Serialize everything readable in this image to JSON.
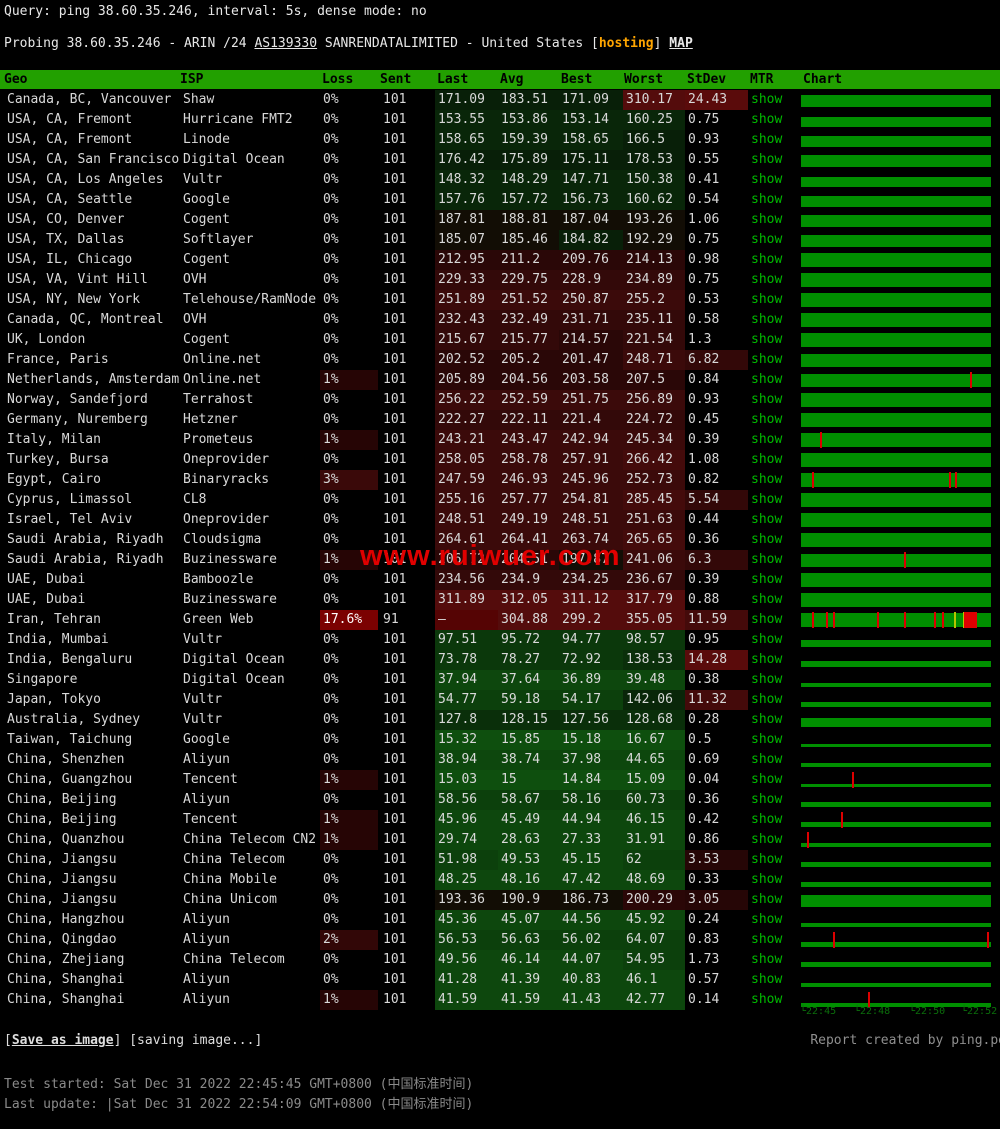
{
  "colors": {
    "header_bg": "#22a000",
    "link_green": "#00ba00",
    "bar_green": "#008f00",
    "tick_red": "#dd0000",
    "tick_yellow": "#b6c400",
    "hosting_orange": "#ffa500",
    "watermark_red": "#e00000",
    "loss_heavy_bg": "#7b0101"
  },
  "top": {
    "query": "Query: ping 38.60.35.246, interval: 5s, dense mode: no",
    "probing_part1": "Probing 38.60.35.246 - ARIN /24 ",
    "probing_asn": "AS139330",
    "probing_part2": " SANRENDATALIMITED - United States [",
    "probing_hosting": "hosting",
    "probing_part3": "] ",
    "probing_map": "MAP"
  },
  "watermark": "www.ruiwuer.com",
  "table": {
    "headers": [
      "Geo",
      "ISP",
      "Loss",
      "Sent",
      "Last",
      "Avg",
      "Best",
      "Worst",
      "StDev",
      "MTR",
      "Chart"
    ],
    "mtr_label": "show",
    "rows": [
      {
        "geo": "Canada, BC, Vancouver",
        "isp": "Shaw",
        "loss": "0%",
        "sent": "101",
        "last": "171.09",
        "avg": "183.51",
        "best": "171.09",
        "worst": "310.17",
        "stdev": "24.43",
        "chart": {
          "ticks": []
        }
      },
      {
        "geo": "USA, CA, Fremont",
        "isp": "Hurricane FMT2",
        "loss": "0%",
        "sent": "101",
        "last": "153.55",
        "avg": "153.86",
        "best": "153.14",
        "worst": "160.25",
        "stdev": "0.75",
        "chart": {
          "ticks": []
        }
      },
      {
        "geo": "USA, CA, Fremont",
        "isp": "Linode",
        "loss": "0%",
        "sent": "101",
        "last": "158.65",
        "avg": "159.39",
        "best": "158.65",
        "worst": "166.5",
        "stdev": "0.93",
        "chart": {
          "ticks": []
        }
      },
      {
        "geo": "USA, CA, San Francisco",
        "isp": "Digital Ocean",
        "loss": "0%",
        "sent": "101",
        "last": "176.42",
        "avg": "175.89",
        "best": "175.11",
        "worst": "178.53",
        "stdev": "0.55",
        "chart": {
          "ticks": []
        }
      },
      {
        "geo": "USA, CA, Los Angeles",
        "isp": "Vultr",
        "loss": "0%",
        "sent": "101",
        "last": "148.32",
        "avg": "148.29",
        "best": "147.71",
        "worst": "150.38",
        "stdev": "0.41",
        "chart": {
          "ticks": []
        }
      },
      {
        "geo": "USA, CA, Seattle",
        "isp": "Google",
        "loss": "0%",
        "sent": "101",
        "last": "157.76",
        "avg": "157.72",
        "best": "156.73",
        "worst": "160.62",
        "stdev": "0.54",
        "chart": {
          "ticks": []
        }
      },
      {
        "geo": "USA, CO, Denver",
        "isp": "Cogent",
        "loss": "0%",
        "sent": "101",
        "last": "187.81",
        "avg": "188.81",
        "best": "187.04",
        "worst": "193.26",
        "stdev": "1.06",
        "chart": {
          "ticks": []
        }
      },
      {
        "geo": "USA, TX, Dallas",
        "isp": "Softlayer",
        "loss": "0%",
        "sent": "101",
        "last": "185.07",
        "avg": "185.46",
        "best": "184.82",
        "worst": "192.29",
        "stdev": "0.75",
        "chart": {
          "ticks": []
        }
      },
      {
        "geo": "USA, IL, Chicago",
        "isp": "Cogent",
        "loss": "0%",
        "sent": "101",
        "last": "212.95",
        "avg": "211.2",
        "best": "209.76",
        "worst": "214.13",
        "stdev": "0.98",
        "chart": {
          "ticks": []
        }
      },
      {
        "geo": "USA, VA, Vint Hill",
        "isp": "OVH",
        "loss": "0%",
        "sent": "101",
        "last": "229.33",
        "avg": "229.75",
        "best": "228.9",
        "worst": "234.89",
        "stdev": "0.75",
        "chart": {
          "ticks": []
        }
      },
      {
        "geo": "USA, NY, New York",
        "isp": "Telehouse/RamNode",
        "loss": "0%",
        "sent": "101",
        "last": "251.89",
        "avg": "251.52",
        "best": "250.87",
        "worst": "255.2",
        "stdev": "0.53",
        "chart": {
          "ticks": []
        }
      },
      {
        "geo": "Canada, QC, Montreal",
        "isp": "OVH",
        "loss": "0%",
        "sent": "101",
        "last": "232.43",
        "avg": "232.49",
        "best": "231.71",
        "worst": "235.11",
        "stdev": "0.58",
        "chart": {
          "ticks": []
        }
      },
      {
        "geo": "UK, London",
        "isp": "Cogent",
        "loss": "0%",
        "sent": "101",
        "last": "215.67",
        "avg": "215.77",
        "best": "214.57",
        "worst": "221.54",
        "stdev": "1.3",
        "chart": {
          "ticks": []
        }
      },
      {
        "geo": "France, Paris",
        "isp": "Online.net",
        "loss": "0%",
        "sent": "101",
        "last": "202.52",
        "avg": "205.2",
        "best": "201.47",
        "worst": "248.71",
        "stdev": "6.82",
        "chart": {
          "ticks": []
        }
      },
      {
        "geo": "Netherlands, Amsterdam",
        "isp": "Online.net",
        "loss": "1%",
        "sent": "101",
        "last": "205.89",
        "avg": "204.56",
        "best": "203.58",
        "worst": "207.5",
        "stdev": "0.84",
        "chart": {
          "ticks": [
            0.89
          ]
        }
      },
      {
        "geo": "Norway, Sandefjord",
        "isp": "Terrahost",
        "loss": "0%",
        "sent": "101",
        "last": "256.22",
        "avg": "252.59",
        "best": "251.75",
        "worst": "256.89",
        "stdev": "0.93",
        "chart": {
          "ticks": []
        }
      },
      {
        "geo": "Germany, Nuremberg",
        "isp": "Hetzner",
        "loss": "0%",
        "sent": "101",
        "last": "222.27",
        "avg": "222.11",
        "best": "221.4",
        "worst": "224.72",
        "stdev": "0.45",
        "chart": {
          "ticks": []
        }
      },
      {
        "geo": "Italy, Milan",
        "isp": "Prometeus",
        "loss": "1%",
        "sent": "101",
        "last": "243.21",
        "avg": "243.47",
        "best": "242.94",
        "worst": "245.34",
        "stdev": "0.39",
        "chart": {
          "ticks": [
            0.1
          ]
        }
      },
      {
        "geo": "Turkey, Bursa",
        "isp": "Oneprovider",
        "loss": "0%",
        "sent": "101",
        "last": "258.05",
        "avg": "258.78",
        "best": "257.91",
        "worst": "266.42",
        "stdev": "1.08",
        "chart": {
          "ticks": []
        }
      },
      {
        "geo": "Egypt, Cairo",
        "isp": "Binaryracks",
        "loss": "3%",
        "sent": "101",
        "last": "247.59",
        "avg": "246.93",
        "best": "245.96",
        "worst": "252.73",
        "stdev": "0.82",
        "chart": {
          "ticks": [
            0.06,
            0.78,
            0.81
          ]
        }
      },
      {
        "geo": "Cyprus, Limassol",
        "isp": "CL8",
        "loss": "0%",
        "sent": "101",
        "last": "255.16",
        "avg": "257.77",
        "best": "254.81",
        "worst": "285.45",
        "stdev": "5.54",
        "chart": {
          "ticks": []
        }
      },
      {
        "geo": "Israel, Tel Aviv",
        "isp": "Oneprovider",
        "loss": "0%",
        "sent": "101",
        "last": "248.51",
        "avg": "249.19",
        "best": "248.51",
        "worst": "251.63",
        "stdev": "0.44",
        "chart": {
          "ticks": []
        }
      },
      {
        "geo": "Saudi Arabia, Riyadh",
        "isp": "Cloudsigma",
        "loss": "0%",
        "sent": "101",
        "last": "264.61",
        "avg": "264.41",
        "best": "263.74",
        "worst": "265.65",
        "stdev": "0.36",
        "chart": {
          "ticks": []
        }
      },
      {
        "geo": "Saudi Arabia, Riyadh",
        "isp": "Buzinessware",
        "loss": "1%",
        "sent": "101",
        "last": "206.72",
        "avg": "204.51",
        "best": "197.87",
        "worst": "241.06",
        "stdev": "6.3",
        "chart": {
          "ticks": [
            0.54
          ]
        }
      },
      {
        "geo": "UAE, Dubai",
        "isp": "Bamboozle",
        "loss": "0%",
        "sent": "101",
        "last": "234.56",
        "avg": "234.9",
        "best": "234.25",
        "worst": "236.67",
        "stdev": "0.39",
        "chart": {
          "ticks": []
        }
      },
      {
        "geo": "UAE, Dubai",
        "isp": "Buzinessware",
        "loss": "0%",
        "sent": "101",
        "last": "311.89",
        "avg": "312.05",
        "best": "311.12",
        "worst": "317.79",
        "stdev": "0.88",
        "chart": {
          "ticks": []
        }
      },
      {
        "geo": "Iran, Tehran",
        "isp": "Green Web",
        "loss": "17.6%",
        "sent": "91",
        "last": "–",
        "avg": "304.88",
        "best": "299.2",
        "worst": "355.05",
        "stdev": "11.59",
        "chart": {
          "ticks": [
            0.06,
            0.13,
            0.17,
            0.4,
            0.54,
            0.7,
            0.74
          ],
          "yellow": [
            0.805,
            0.85
          ],
          "block": [
            0.86,
            0.93
          ]
        }
      },
      {
        "geo": "India, Mumbai",
        "isp": "Vultr",
        "loss": "0%",
        "sent": "101",
        "last": "97.51",
        "avg": "95.72",
        "best": "94.77",
        "worst": "98.57",
        "stdev": "0.95",
        "chart": {
          "ticks": []
        }
      },
      {
        "geo": "India, Bengaluru",
        "isp": "Digital Ocean",
        "loss": "0%",
        "sent": "101",
        "last": "73.78",
        "avg": "78.27",
        "best": "72.92",
        "worst": "138.53",
        "stdev": "14.28",
        "chart": {
          "ticks": []
        }
      },
      {
        "geo": "Singapore",
        "isp": "Digital Ocean",
        "loss": "0%",
        "sent": "101",
        "last": "37.94",
        "avg": "37.64",
        "best": "36.89",
        "worst": "39.48",
        "stdev": "0.38",
        "chart": {
          "ticks": []
        }
      },
      {
        "geo": "Japan, Tokyo",
        "isp": "Vultr",
        "loss": "0%",
        "sent": "101",
        "last": "54.77",
        "avg": "59.18",
        "best": "54.17",
        "worst": "142.06",
        "stdev": "11.32",
        "chart": {
          "ticks": []
        }
      },
      {
        "geo": "Australia, Sydney",
        "isp": "Vultr",
        "loss": "0%",
        "sent": "101",
        "last": "127.8",
        "avg": "128.15",
        "best": "127.56",
        "worst": "128.68",
        "stdev": "0.28",
        "chart": {
          "ticks": []
        }
      },
      {
        "geo": "Taiwan, Taichung",
        "isp": "Google",
        "loss": "0%",
        "sent": "101",
        "last": "15.32",
        "avg": "15.85",
        "best": "15.18",
        "worst": "16.67",
        "stdev": "0.5",
        "chart": {
          "ticks": []
        }
      },
      {
        "geo": "China, Shenzhen",
        "isp": "Aliyun",
        "loss": "0%",
        "sent": "101",
        "last": "38.94",
        "avg": "38.74",
        "best": "37.98",
        "worst": "44.65",
        "stdev": "0.69",
        "chart": {
          "ticks": []
        }
      },
      {
        "geo": "China, Guangzhou",
        "isp": "Tencent",
        "loss": "1%",
        "sent": "101",
        "last": "15.03",
        "avg": "15",
        "best": "14.84",
        "worst": "15.09",
        "stdev": "0.04",
        "chart": {
          "ticks": [
            0.27
          ]
        }
      },
      {
        "geo": "China, Beijing",
        "isp": "Aliyun",
        "loss": "0%",
        "sent": "101",
        "last": "58.56",
        "avg": "58.67",
        "best": "58.16",
        "worst": "60.73",
        "stdev": "0.36",
        "chart": {
          "ticks": []
        }
      },
      {
        "geo": "China, Beijing",
        "isp": "Tencent",
        "loss": "1%",
        "sent": "101",
        "last": "45.96",
        "avg": "45.49",
        "best": "44.94",
        "worst": "46.15",
        "stdev": "0.42",
        "chart": {
          "ticks": [
            0.21
          ]
        }
      },
      {
        "geo": "China, Quanzhou",
        "isp": "China Telecom CN2",
        "loss": "1%",
        "sent": "101",
        "last": "29.74",
        "avg": "28.63",
        "best": "27.33",
        "worst": "31.91",
        "stdev": "0.86",
        "chart": {
          "ticks": [
            0.03
          ]
        }
      },
      {
        "geo": "China, Jiangsu",
        "isp": "China Telecom",
        "loss": "0%",
        "sent": "101",
        "last": "51.98",
        "avg": "49.53",
        "best": "45.15",
        "worst": "62",
        "stdev": "3.53",
        "chart": {
          "ticks": []
        }
      },
      {
        "geo": "China, Jiangsu",
        "isp": "China Mobile",
        "loss": "0%",
        "sent": "101",
        "last": "48.25",
        "avg": "48.16",
        "best": "47.42",
        "worst": "48.69",
        "stdev": "0.33",
        "chart": {
          "ticks": []
        }
      },
      {
        "geo": "China, Jiangsu",
        "isp": "China Unicom",
        "loss": "0%",
        "sent": "101",
        "last": "193.36",
        "avg": "190.9",
        "best": "186.73",
        "worst": "200.29",
        "stdev": "3.05",
        "chart": {
          "ticks": []
        }
      },
      {
        "geo": "China, Hangzhou",
        "isp": "Aliyun",
        "loss": "0%",
        "sent": "101",
        "last": "45.36",
        "avg": "45.07",
        "best": "44.56",
        "worst": "45.92",
        "stdev": "0.24",
        "chart": {
          "ticks": []
        }
      },
      {
        "geo": "China, Qingdao",
        "isp": "Aliyun",
        "loss": "2%",
        "sent": "101",
        "last": "56.53",
        "avg": "56.63",
        "best": "56.02",
        "worst": "64.07",
        "stdev": "0.83",
        "chart": {
          "ticks": [
            0.17,
            0.98
          ]
        }
      },
      {
        "geo": "China, Zhejiang",
        "isp": "China Telecom",
        "loss": "0%",
        "sent": "101",
        "last": "49.56",
        "avg": "46.14",
        "best": "44.07",
        "worst": "54.95",
        "stdev": "1.73",
        "chart": {
          "ticks": []
        }
      },
      {
        "geo": "China, Shanghai",
        "isp": "Aliyun",
        "loss": "0%",
        "sent": "101",
        "last": "41.28",
        "avg": "41.39",
        "best": "40.83",
        "worst": "46.1",
        "stdev": "0.57",
        "chart": {
          "ticks": []
        }
      },
      {
        "geo": "China, Shanghai",
        "isp": "Aliyun",
        "loss": "1%",
        "sent": "101",
        "last": "41.59",
        "avg": "41.59",
        "best": "41.43",
        "worst": "42.77",
        "stdev": "0.14",
        "chart": {
          "ticks": [
            0.35
          ]
        }
      }
    ]
  },
  "axis": {
    "labels": [
      "22:45",
      "22:48",
      "22:50",
      "22:52"
    ],
    "offsets": [
      0,
      54,
      109,
      161
    ]
  },
  "footer": {
    "bracket_open": "[",
    "save_label": "Save as image",
    "bracket_mid": "] ",
    "saving": "[saving image...]",
    "report": "Report created by ping.pe",
    "test_started": "Test started: Sat Dec 31 2022 22:45:45 GMT+0800 (中国标准时间)",
    "last_update": "Last update: |Sat Dec 31 2022 22:54:09 GMT+0800 (中国标准时间)"
  }
}
